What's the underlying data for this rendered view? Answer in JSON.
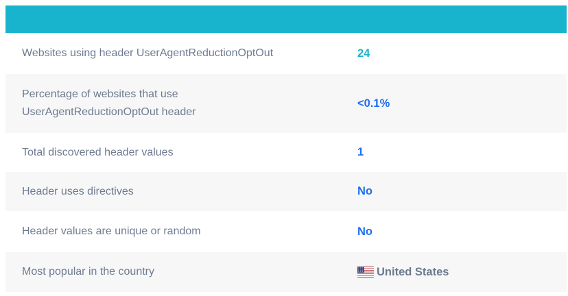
{
  "card": {
    "header_bar_text": ""
  },
  "table": {
    "rows": [
      {
        "label": "Websites using header UserAgentReductionOptOut",
        "value": "24",
        "style": "teal"
      },
      {
        "label": "Percentage of websites that use\nUserAgentReductionOptOut header",
        "value": "<0.1%",
        "style": "blue"
      },
      {
        "label": "Total discovered header values",
        "value": "1",
        "style": "blue"
      },
      {
        "label": "Header uses directives",
        "value": "No",
        "style": "blue"
      },
      {
        "label": "Header values are unique or random",
        "value": "No",
        "style": "blue"
      },
      {
        "label": "Most popular in the country",
        "value": "United States",
        "style": "country",
        "icon": "us-flag-icon"
      }
    ]
  },
  "colors": {
    "accent_teal": "#18b4ce",
    "value_blue": "#1e6ef0",
    "label_gray": "#6e7b90",
    "row_alt_bg": "#f7f7f7",
    "country_text": "#6b7a90",
    "flag_red": "#b94b54",
    "flag_blue": "#4b4d7d"
  }
}
